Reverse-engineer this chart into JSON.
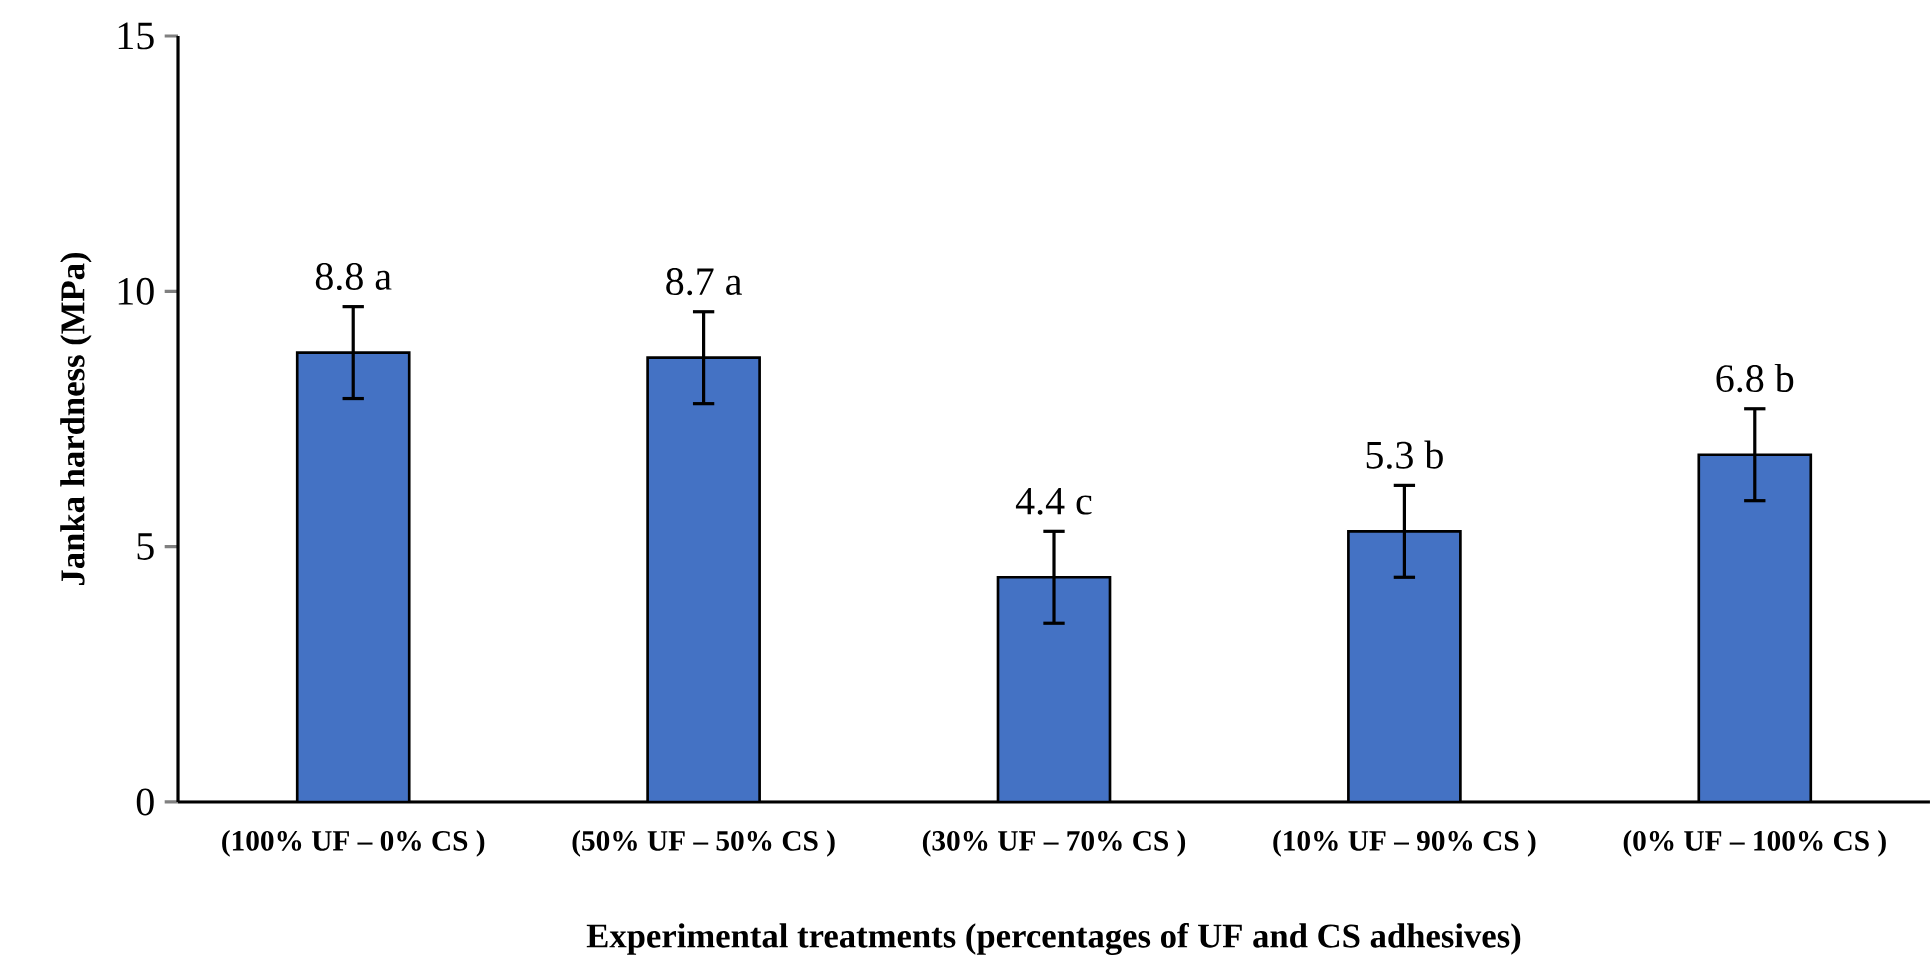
{
  "chart_data": {
    "type": "bar",
    "xlabel": "Experimental treatments (percentages of UF and CS adhesives)",
    "ylabel": "Janka hardness  (MPa)",
    "categories": [
      "(100% UF – 0% CS )",
      "(50% UF – 50% CS )",
      "(30% UF – 70% CS )",
      "(10% UF – 90% CS )",
      "(0% UF – 100% CS )"
    ],
    "values": [
      8.8,
      8.7,
      4.4,
      5.3,
      6.8
    ],
    "errors": [
      0.9,
      0.9,
      0.9,
      0.9,
      0.9
    ],
    "value_labels": [
      "8.8 a",
      "8.7 a",
      "4.4 c",
      "5.3 b",
      "6.8 b"
    ],
    "color": "#4472c4",
    "ylim": [
      0,
      15
    ],
    "yticks": [
      0,
      5,
      10,
      15
    ],
    "grid": false
  }
}
